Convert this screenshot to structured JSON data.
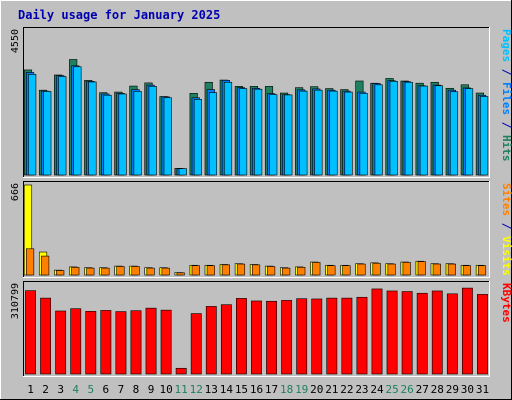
{
  "chart_data": {
    "type": "bar",
    "title": "Daily usage for January 2025",
    "days": [
      "1",
      "2",
      "3",
      "4",
      "5",
      "6",
      "7",
      "8",
      "9",
      "10",
      "11",
      "12",
      "13",
      "14",
      "15",
      "16",
      "17",
      "18",
      "19",
      "20",
      "21",
      "22",
      "23",
      "24",
      "25",
      "26",
      "27",
      "28",
      "29",
      "30",
      "31"
    ],
    "weekend_days": [
      "4",
      "5",
      "11",
      "12",
      "18",
      "19",
      "25",
      "26"
    ],
    "panels": [
      {
        "name": "hits-files-pages",
        "ymax": 4550,
        "ymax_label": "4550",
        "ylabel_parts": [
          {
            "text": "Pages",
            "color": "#00c0ff"
          },
          {
            "text": " / ",
            "color": "#0000b0"
          },
          {
            "text": "Files",
            "color": "#0080ff"
          },
          {
            "text": " / ",
            "color": "#0000b0"
          },
          {
            "text": "Hits",
            "color": "#208060"
          }
        ],
        "series": [
          {
            "name": "Hits",
            "color": "#208060",
            "values": [
              3320,
              2680,
              3160,
              3650,
              2990,
              2600,
              2620,
              2810,
              2910,
              2480,
              210,
              2580,
              2930,
              3000,
              2800,
              2800,
              2800,
              2590,
              2760,
              2790,
              2730,
              2700,
              2970,
              2900,
              3050,
              2970,
              2900,
              2930,
              2740,
              2850,
              2590
            ]
          },
          {
            "name": "Files",
            "color": "#0080ff",
            "values": [
              3240,
              2650,
              3140,
              3450,
              2960,
              2560,
              2580,
              2700,
              2840,
              2470,
              200,
              2440,
              2700,
              2990,
              2760,
              2740,
              2570,
              2540,
              2690,
              2720,
              2680,
              2650,
              2620,
              2890,
              2980,
              2950,
              2820,
              2840,
              2680,
              2750,
              2520
            ]
          },
          {
            "name": "Pages",
            "color": "#00c0ff",
            "values": [
              3180,
              2640,
              3110,
              3420,
              2940,
              2520,
              2560,
              2640,
              2800,
              2440,
              200,
              2390,
              2600,
              2930,
              2730,
              2710,
              2540,
              2530,
              2650,
              2680,
              2650,
              2620,
              2580,
              2850,
              2960,
              2930,
              2810,
              2820,
              2630,
              2730,
              2480
            ]
          }
        ]
      },
      {
        "name": "visits-sites",
        "ymax": 666,
        "ymax_label": "666",
        "ylabel_parts": [
          {
            "text": "Sites",
            "color": "#ff8000"
          },
          {
            "text": " / ",
            "color": "#0000b0"
          },
          {
            "text": "Visits",
            "color": "#ffff00"
          }
        ],
        "series": [
          {
            "name": "Visits",
            "color": "#ffff00",
            "values": [
              666,
              170,
              36,
              60,
              54,
              54,
              66,
              66,
              54,
              54,
              18,
              72,
              72,
              78,
              84,
              78,
              66,
              54,
              60,
              96,
              72,
              72,
              84,
              90,
              84,
              96,
              102,
              84,
              84,
              72,
              72
            ]
          },
          {
            "name": "Sites",
            "color": "#ff8000",
            "values": [
              194,
              140,
              33,
              57,
              51,
              51,
              63,
              63,
              51,
              51,
              16,
              69,
              69,
              75,
              81,
              75,
              63,
              51,
              57,
              93,
              69,
              69,
              81,
              87,
              81,
              93,
              99,
              81,
              81,
              69,
              69
            ]
          }
        ]
      },
      {
        "name": "kbytes",
        "ymax": 310799,
        "ymax_label": "310799",
        "ylabel_parts": [
          {
            "text": "KBytes",
            "color": "#ff0000"
          }
        ],
        "series": [
          {
            "name": "KBytes",
            "color": "#ff0000",
            "values": [
              291000,
              265000,
              220000,
              228000,
              219000,
              222000,
              218000,
              221000,
              230000,
              223000,
              20000,
              211000,
              236000,
              242000,
              264000,
              255000,
              254000,
              257000,
              263000,
              262000,
              265000,
              265000,
              268000,
              297000,
              290000,
              288000,
              282000,
              290000,
              280000,
              300000,
              278000
            ]
          }
        ]
      }
    ]
  }
}
